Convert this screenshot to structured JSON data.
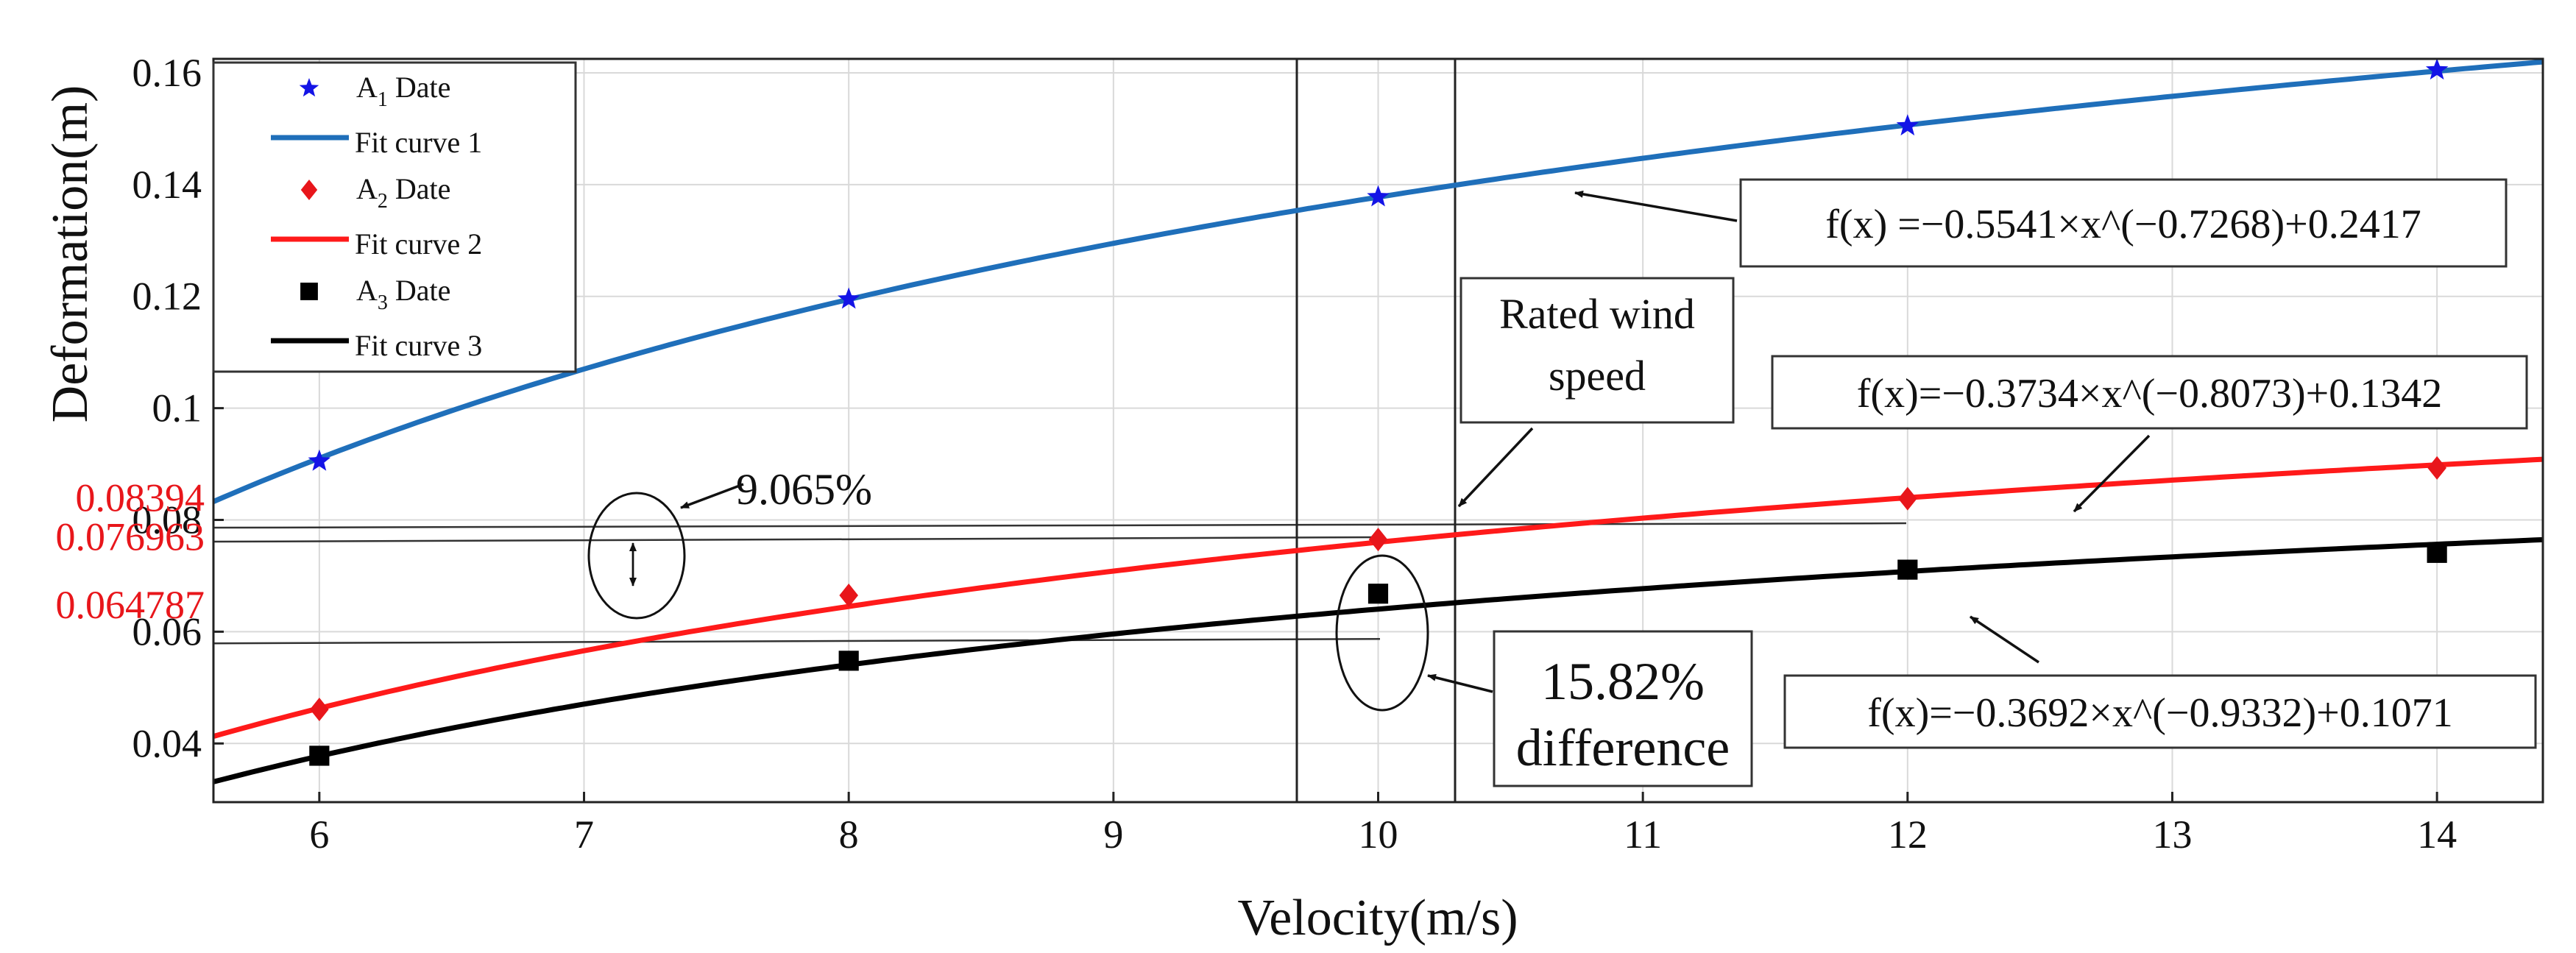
{
  "chart_data": {
    "type": "line",
    "xlabel": "Velocity(m/s)",
    "ylabel": "Deformation(m)",
    "xlim": [
      5.6,
      14.4
    ],
    "ylim": [
      0.0295,
      0.1625
    ],
    "x_ticks": [
      "6",
      "7",
      "8",
      "9",
      "10",
      "11",
      "12",
      "13",
      "14"
    ],
    "y_ticks": [
      "0.04",
      "0.06",
      "0.08",
      "0.1",
      "0.12",
      "0.14",
      "0.16"
    ],
    "y_ticks_highlight": [
      "0.064787",
      "0.076963",
      "0.08394"
    ],
    "highlight_color": "#e8161b",
    "grid": true,
    "legend_position": "top-left",
    "series": [
      {
        "legend_markers": "A1 Date",
        "legend_fit": "Fit curve 1",
        "marker": "star",
        "marker_color": "#1414e6",
        "line_color": "#1f6fba",
        "x": [
          6,
          8,
          10,
          12,
          14
        ],
        "y": [
          0.0905,
          0.1195,
          0.1378,
          0.1505,
          0.1605
        ],
        "fit": {
          "a": -0.5541,
          "b": -0.7268,
          "c": 0.2417
        },
        "equation": "f(x) =−0.5541×x^(−0.7268)+0.2417"
      },
      {
        "legend_markers": "A2 Date",
        "legend_fit": "Fit curve 2",
        "marker": "diamond",
        "marker_color": "#e8161b",
        "line_color": "#ff1a1a",
        "x": [
          6,
          8,
          10,
          12,
          14
        ],
        "y": [
          0.0461,
          0.0665,
          0.0765,
          0.0838,
          0.0893
        ],
        "fit": {
          "a": -0.3734,
          "b": -0.8073,
          "c": 0.1342
        },
        "equation": "f(x)=−0.3734×x^(−0.8073)+0.1342"
      },
      {
        "legend_markers": "A3 Date",
        "legend_fit": "Fit curve 3",
        "marker": "square",
        "marker_color": "#000000",
        "line_color": "#000000",
        "x": [
          6,
          8,
          10,
          12,
          14
        ],
        "y": [
          0.0378,
          0.0548,
          0.0668,
          0.0711,
          0.0741
        ],
        "fit": {
          "a": -0.3692,
          "b": -0.9332,
          "c": 0.1071
        },
        "equation": "f(x)=−0.3692×x^(−0.9332)+0.1071"
      }
    ],
    "annotations": {
      "rated_wind_speed": [
        "Rated wind",
        "speed"
      ],
      "pct_small": "9.065%",
      "pct_large": [
        "15.82%",
        "difference"
      ]
    }
  }
}
